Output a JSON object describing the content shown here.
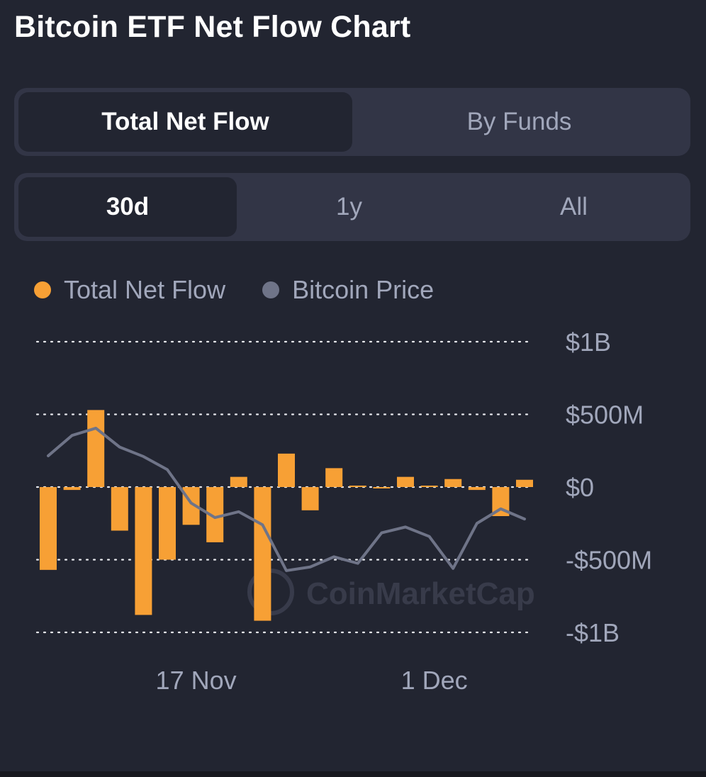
{
  "header": {
    "title": "Bitcoin ETF Net Flow Chart"
  },
  "view_tabs": [
    {
      "label": "Total Net Flow",
      "active": true
    },
    {
      "label": "By Funds",
      "active": false
    }
  ],
  "range_tabs": [
    {
      "label": "30d",
      "active": true
    },
    {
      "label": "1y",
      "active": false
    },
    {
      "label": "All",
      "active": false
    }
  ],
  "legend": [
    {
      "label": "Total Net Flow",
      "color": "#f7a035"
    },
    {
      "label": "Bitcoin Price",
      "color": "#6f7488"
    }
  ],
  "watermark": "CoinMarketCap",
  "chart_data": {
    "type": "bar",
    "y_ticks": [
      {
        "value": 1000000000,
        "label": "$1B"
      },
      {
        "value": 500000000,
        "label": "$500M"
      },
      {
        "value": 0,
        "label": "$0"
      },
      {
        "value": -500000000,
        "label": "-$500M"
      },
      {
        "value": -1000000000,
        "label": "-$1B"
      }
    ],
    "ylim": [
      -1000000000,
      1000000000
    ],
    "x_ticks": [
      {
        "index": 6,
        "label": "17 Nov"
      },
      {
        "index": 16,
        "label": "1 Dec"
      }
    ],
    "grid": true,
    "legend_position": "top-left",
    "series": [
      {
        "name": "Total Net Flow",
        "type": "bar",
        "color": "#f7a035",
        "values": [
          -570000000,
          -20000000,
          530000000,
          -300000000,
          -880000000,
          -500000000,
          -260000000,
          -380000000,
          70000000,
          -920000000,
          230000000,
          -160000000,
          130000000,
          10000000,
          0,
          70000000,
          10000000,
          55000000,
          -20000000,
          -200000000,
          50000000
        ]
      },
      {
        "name": "Bitcoin Price",
        "type": "line",
        "color": "#6f7488",
        "values": [
          0.43,
          0.71,
          0.81,
          0.55,
          0.42,
          0.24,
          -0.22,
          -0.42,
          -0.34,
          -0.52,
          -1.15,
          -1.1,
          -0.96,
          -1.05,
          -0.63,
          -0.55,
          -0.68,
          -1.12,
          -0.5,
          -0.3,
          -0.44
        ]
      }
    ]
  }
}
